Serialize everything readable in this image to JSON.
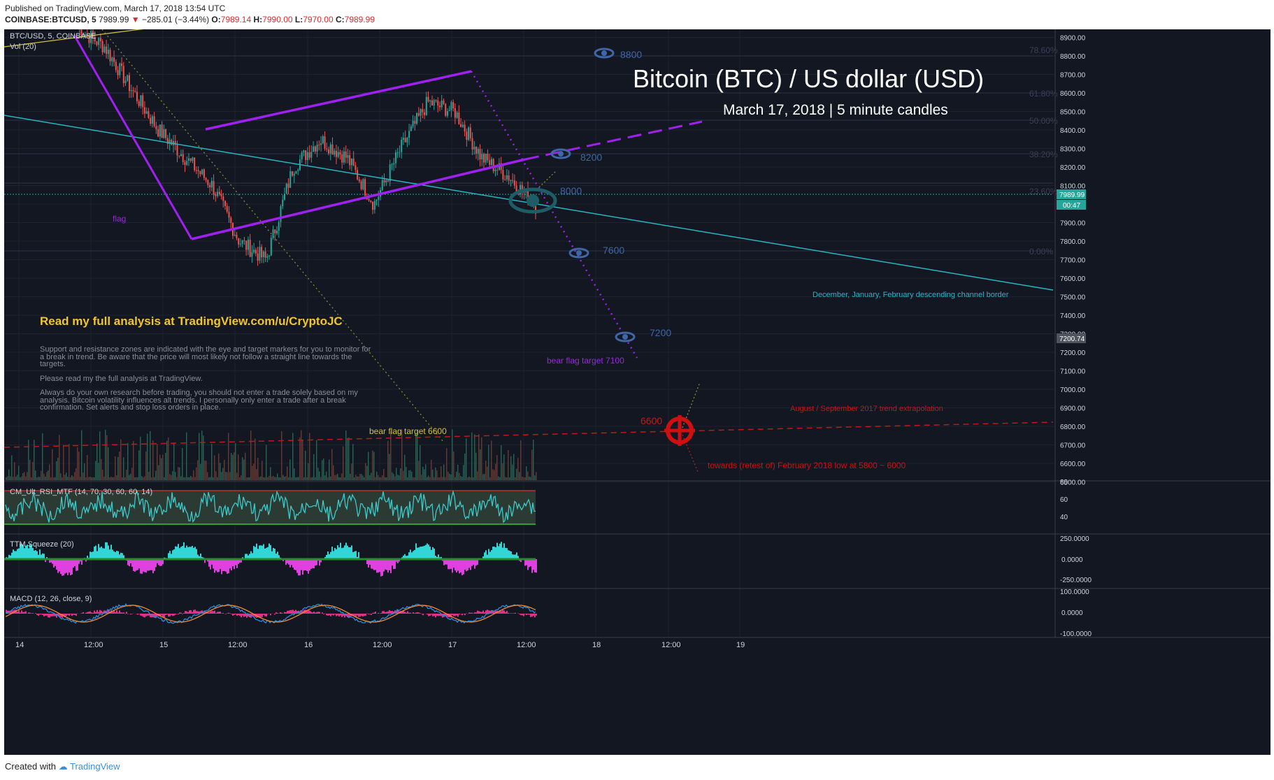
{
  "header": {
    "published": "Published on TradingView.com, March 17, 2018 13:54 UTC",
    "symbol": "COINBASE:BTCUSD, 5",
    "last": "7989.99",
    "change": "−285.01 (−3.44%)",
    "o_label": "O:",
    "o": "7989.14",
    "h_label": "H:",
    "h": "7990.00",
    "l_label": "L:",
    "l": "7970.00",
    "c_label": "C:",
    "c": "7989.99"
  },
  "footer": {
    "created": "Created with",
    "brand": "TradingView"
  },
  "chart": {
    "pair_label": "BTC/USD, 5, COINBASE",
    "vol_label": "Vol (20)",
    "title": "Bitcoin (BTC) / US dollar (USD)",
    "subtitle": "March 17, 2018 | 5 minute candles",
    "analysis_link": "Read my full analysis at TradingView.com/u/CryptoJC",
    "desc1": "Support and resistance zones are indicated with the eye and target markers for you to monitor for",
    "desc2": "a break in trend. Be aware that the price will most likely not follow a straight line towards the",
    "desc3": "targets.",
    "desc4": "Please read my the full analysis at TradingView.",
    "desc5": "Always do your own research before trading, you should not enter a trade solely based on my",
    "desc6": "analysis. Bitcoin volatility influences alt trends. I personally only enter a trade after a break",
    "desc7": "confirmation. Set alerts and stop loss orders in place.",
    "flag_label": "flag",
    "channel_label": "December, January, February descending channel border",
    "bear_target_7100": "bear flag target 7100",
    "bear_target_6600": "bear flag target 6600",
    "aug_sep_label": "August / September 2017 trend extrapolation",
    "towards_label": "towards (retest of) February 2018 low at 5800 ~ 6000",
    "level_8800": "8800",
    "level_8200": "8200",
    "level_8000": "8000",
    "level_7600": "7600",
    "level_7200": "7200",
    "level_6600": "6600",
    "fib_786": "78.60%",
    "fib_618": "61.80%",
    "fib_50": "50.00%",
    "fib_382": "38.20%",
    "fib_236": "23.60%",
    "fib_0": "0.00%",
    "price_tag": "7989.99",
    "timer_tag": "00:47",
    "level_tag": "7200.74",
    "y_ticks": [
      "8900.00",
      "8800.00",
      "8700.00",
      "8600.00",
      "8500.00",
      "8400.00",
      "8300.00",
      "8200.00",
      "8100.00",
      "8000.00",
      "7900.00",
      "7800.00",
      "7700.00",
      "7600.00",
      "7500.00",
      "7400.00",
      "7300.00",
      "7200.00",
      "7100.00",
      "7000.00",
      "6900.00",
      "6800.00",
      "6700.00",
      "6600.00",
      "6500.00"
    ],
    "x_ticks": [
      "14",
      "12:00",
      "15",
      "12:00",
      "16",
      "12:00",
      "17",
      "12:00",
      "18",
      "12:00",
      "19"
    ],
    "rsi_label": "CM_Ult_RSI_MTF (14, 70, 30, 60, 60, 14)",
    "rsi_ticks": [
      "80",
      "60",
      "40"
    ],
    "ttm_label": "TTM Squeeze (20)",
    "ttm_ticks": [
      "250.0000",
      "0.0000",
      "-250.0000"
    ],
    "macd_label": "MACD (12, 26, close, 9)",
    "macd_ticks": [
      "100.0000",
      "0.0000",
      "-100.0000"
    ],
    "colors": {
      "bg": "#131722",
      "up": "#26a69a",
      "down": "#ef5350",
      "channel": "#a020f0",
      "trend": "#27b5c4",
      "target": "#e01010",
      "eye": "#3f66a8"
    }
  },
  "chart_data": {
    "type": "line",
    "title": "Bitcoin (BTC) / US dollar (USD)",
    "subtitle": "March 17, 2018 | 5 minute candles",
    "xlabel": "",
    "ylabel": "",
    "ylim": [
      6450,
      8920
    ],
    "x": [
      "14 00:00",
      "14 08:00",
      "14 12:00",
      "14 16:00",
      "15 00:00",
      "15 06:00",
      "15 10:00",
      "15 14:00",
      "15 20:00",
      "16 02:00",
      "16 06:00",
      "16 12:00",
      "16 16:00",
      "16 20:00",
      "17 02:00",
      "17 06:00",
      "17 10:00",
      "17 13:54"
    ],
    "series": [
      {
        "values": [
          8950,
          8850,
          8620,
          8400,
          8250,
          8100,
          7800,
          7700,
          8200,
          8350,
          8250,
          8000,
          8300,
          8550,
          8500,
          8250,
          8150,
          7990
        ]
      }
    ]
  }
}
